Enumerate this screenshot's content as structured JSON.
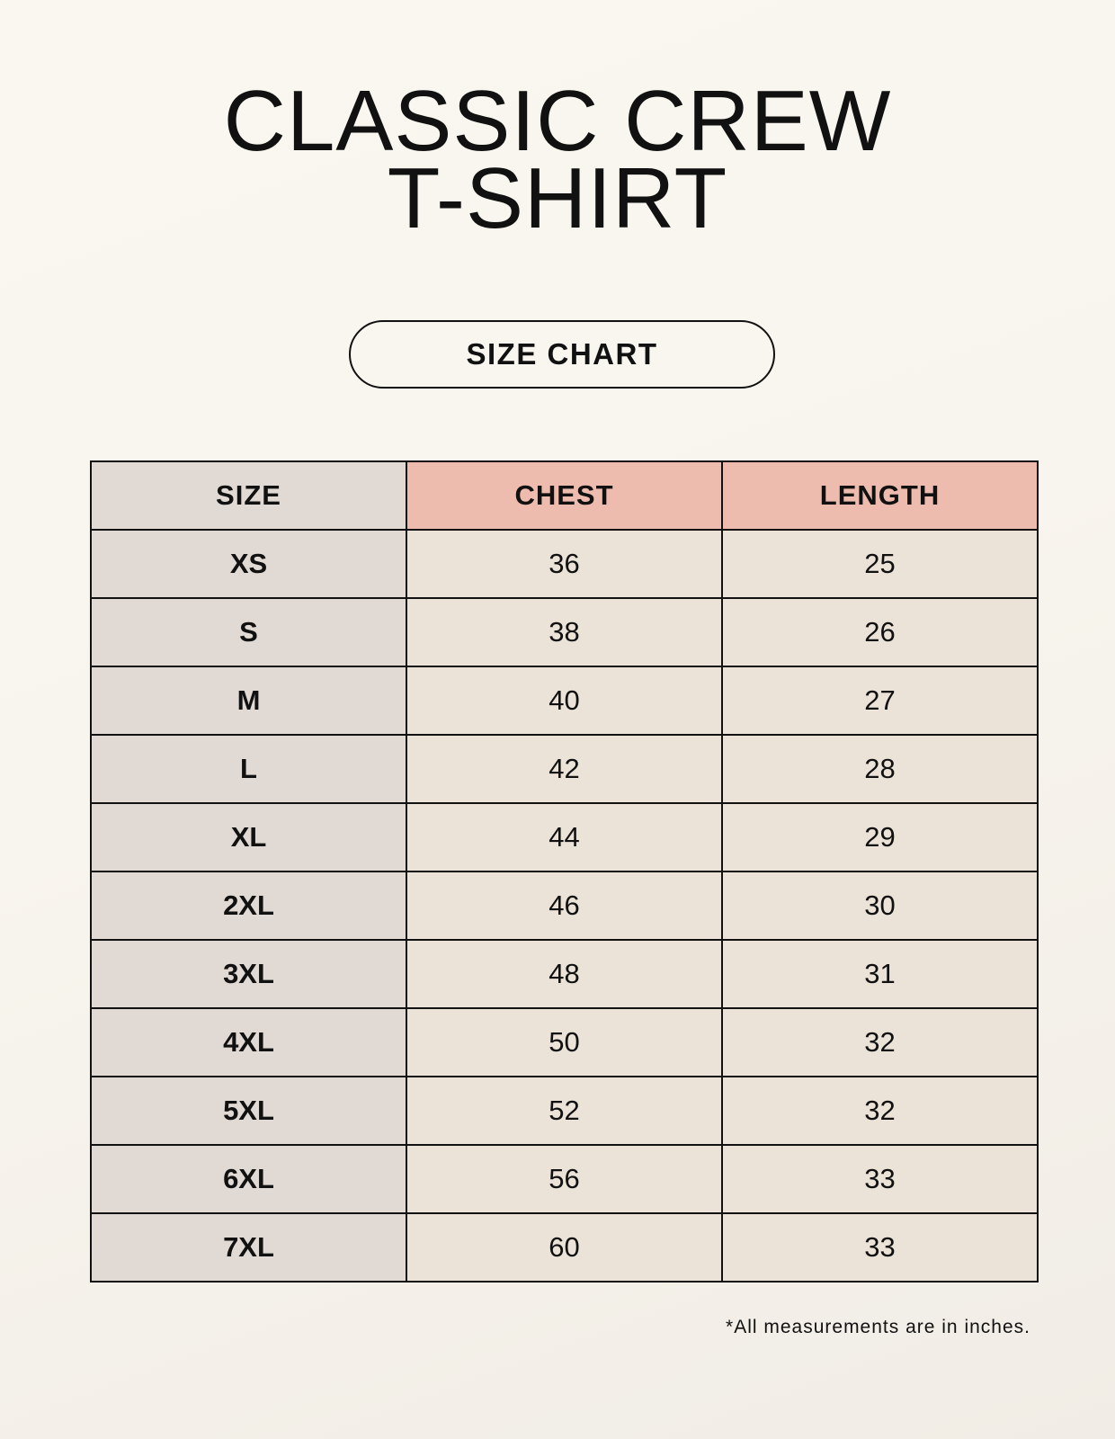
{
  "title_line1": "CLASSIC CREW",
  "title_line2": "T-SHIRT",
  "badge": "SIZE CHART",
  "table": {
    "headers": [
      "SIZE",
      "CHEST",
      "LENGTH"
    ],
    "rows": [
      [
        "XS",
        "36",
        "25"
      ],
      [
        "S",
        "38",
        "26"
      ],
      [
        "M",
        "40",
        "27"
      ],
      [
        "L",
        "42",
        "28"
      ],
      [
        "XL",
        "44",
        "29"
      ],
      [
        "2XL",
        "46",
        "30"
      ],
      [
        "3XL",
        "48",
        "31"
      ],
      [
        "4XL",
        "50",
        "32"
      ],
      [
        "5XL",
        "52",
        "32"
      ],
      [
        "6XL",
        "56",
        "33"
      ],
      [
        "7XL",
        "60",
        "33"
      ]
    ]
  },
  "footnote": "*All measurements are in inches.",
  "colors": {
    "header_measure": "#eebcae",
    "size_column": "#e1d9d3",
    "value_cells": "#ebe3d8",
    "background": "#f8f5ee"
  }
}
